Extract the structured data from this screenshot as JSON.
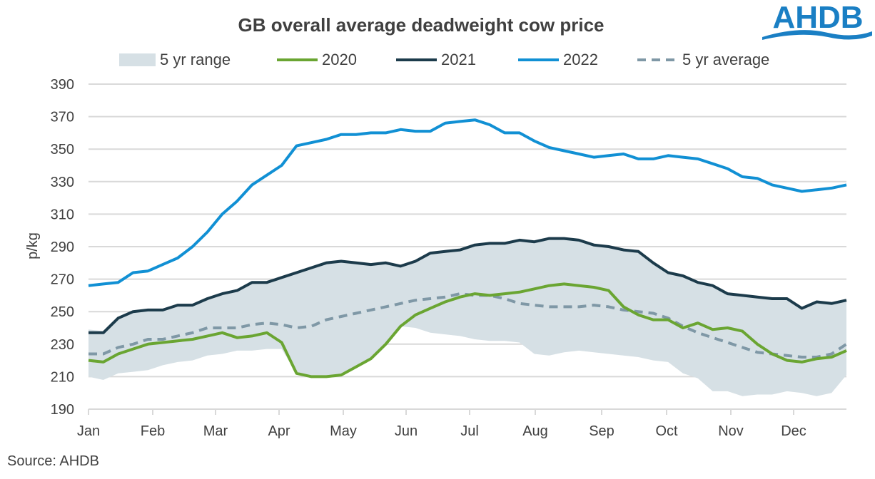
{
  "logo": {
    "text": "AHDB",
    "color": "#1a7fc4"
  },
  "source": "Source: AHDB",
  "chart_data": {
    "type": "line",
    "title": "GB overall average deadweight cow price",
    "xlabel": "",
    "ylabel": "p/kg",
    "ylim": [
      190,
      390
    ],
    "yticks": [
      190,
      210,
      230,
      250,
      270,
      290,
      310,
      330,
      350,
      370,
      390
    ],
    "xtick_labels": [
      "Jan",
      "Feb",
      "Mar",
      "Apr",
      "May",
      "Jun",
      "Jul",
      "Aug",
      "Sep",
      "Oct",
      "Nov",
      "Dec"
    ],
    "x_unit": "week",
    "x": [
      1,
      2,
      3,
      4,
      5,
      6,
      7,
      8,
      9,
      10,
      11,
      12,
      13,
      14,
      15,
      16,
      17,
      18,
      19,
      20,
      21,
      22,
      23,
      24,
      25,
      26,
      27,
      28,
      29,
      30,
      31,
      32,
      33,
      34,
      35,
      36,
      37,
      38,
      39,
      40,
      41,
      42,
      43,
      44,
      45,
      46,
      47,
      48,
      49,
      50,
      51,
      52
    ],
    "grid": "horizontal",
    "legend": "top",
    "range": {
      "name": "5 yr range",
      "color": "#d6e0e5",
      "lower": [
        210,
        208,
        212,
        213,
        214,
        217,
        219,
        220,
        223,
        224,
        226,
        226,
        227,
        227,
        212,
        210,
        210,
        211,
        216,
        221,
        230,
        241,
        240,
        237,
        236,
        235,
        233,
        232,
        232,
        231,
        224,
        223,
        225,
        226,
        225,
        224,
        223,
        222,
        220,
        219,
        212,
        209,
        201,
        201,
        198,
        199,
        199,
        201,
        200,
        198,
        200,
        211
      ],
      "upper": [
        239,
        238,
        246,
        250,
        251,
        251,
        254,
        254,
        258,
        261,
        263,
        268,
        268,
        271,
        274,
        277,
        280,
        281,
        280,
        279,
        280,
        278,
        281,
        286,
        287,
        288,
        291,
        292,
        292,
        294,
        293,
        295,
        295,
        294,
        291,
        290,
        288,
        287,
        280,
        274,
        272,
        268,
        266,
        261,
        260,
        259,
        258,
        258,
        252,
        256,
        255,
        257
      ]
    },
    "series": [
      {
        "name": "2020",
        "color": "#6aa532",
        "dash": false,
        "values": [
          220,
          219,
          224,
          227,
          230,
          231,
          232,
          233,
          235,
          237,
          234,
          235,
          237,
          231,
          212,
          210,
          210,
          211,
          216,
          221,
          230,
          241,
          248,
          252,
          256,
          259,
          261,
          260,
          261,
          262,
          264,
          266,
          267,
          266,
          265,
          263,
          253,
          248,
          245,
          245,
          240,
          243,
          239,
          240,
          238,
          230,
          224,
          220,
          219,
          221,
          222,
          226
        ]
      },
      {
        "name": "2021",
        "color": "#1c3b4b",
        "dash": false,
        "values": [
          237,
          237,
          246,
          250,
          251,
          251,
          254,
          254,
          258,
          261,
          263,
          268,
          268,
          271,
          274,
          277,
          280,
          281,
          280,
          279,
          280,
          278,
          281,
          286,
          287,
          288,
          291,
          292,
          292,
          294,
          293,
          295,
          295,
          294,
          291,
          290,
          288,
          287,
          280,
          274,
          272,
          268,
          266,
          261,
          260,
          259,
          258,
          258,
          252,
          256,
          255,
          257
        ]
      },
      {
        "name": "2022",
        "color": "#1190d4",
        "dash": false,
        "values": [
          266,
          267,
          268,
          274,
          275,
          279,
          283,
          290,
          299,
          310,
          318,
          328,
          334,
          340,
          352,
          354,
          356,
          359,
          359,
          360,
          360,
          362,
          361,
          361,
          366,
          367,
          368,
          365,
          360,
          360,
          355,
          351,
          349,
          347,
          345,
          346,
          347,
          344,
          344,
          346,
          345,
          344,
          341,
          338,
          333,
          332,
          328,
          326,
          324,
          325,
          326,
          328
        ]
      },
      {
        "name": "5 yr average",
        "color": "#7f98a6",
        "dash": true,
        "values": [
          224,
          224,
          228,
          230,
          233,
          233,
          235,
          237,
          240,
          240,
          240,
          242,
          243,
          242,
          240,
          241,
          245,
          247,
          249,
          251,
          253,
          255,
          257,
          258,
          259,
          261,
          260,
          260,
          258,
          255,
          254,
          253,
          253,
          253,
          254,
          253,
          251,
          250,
          249,
          246,
          241,
          237,
          234,
          231,
          228,
          225,
          224,
          223,
          222,
          222,
          224,
          230
        ]
      }
    ]
  }
}
